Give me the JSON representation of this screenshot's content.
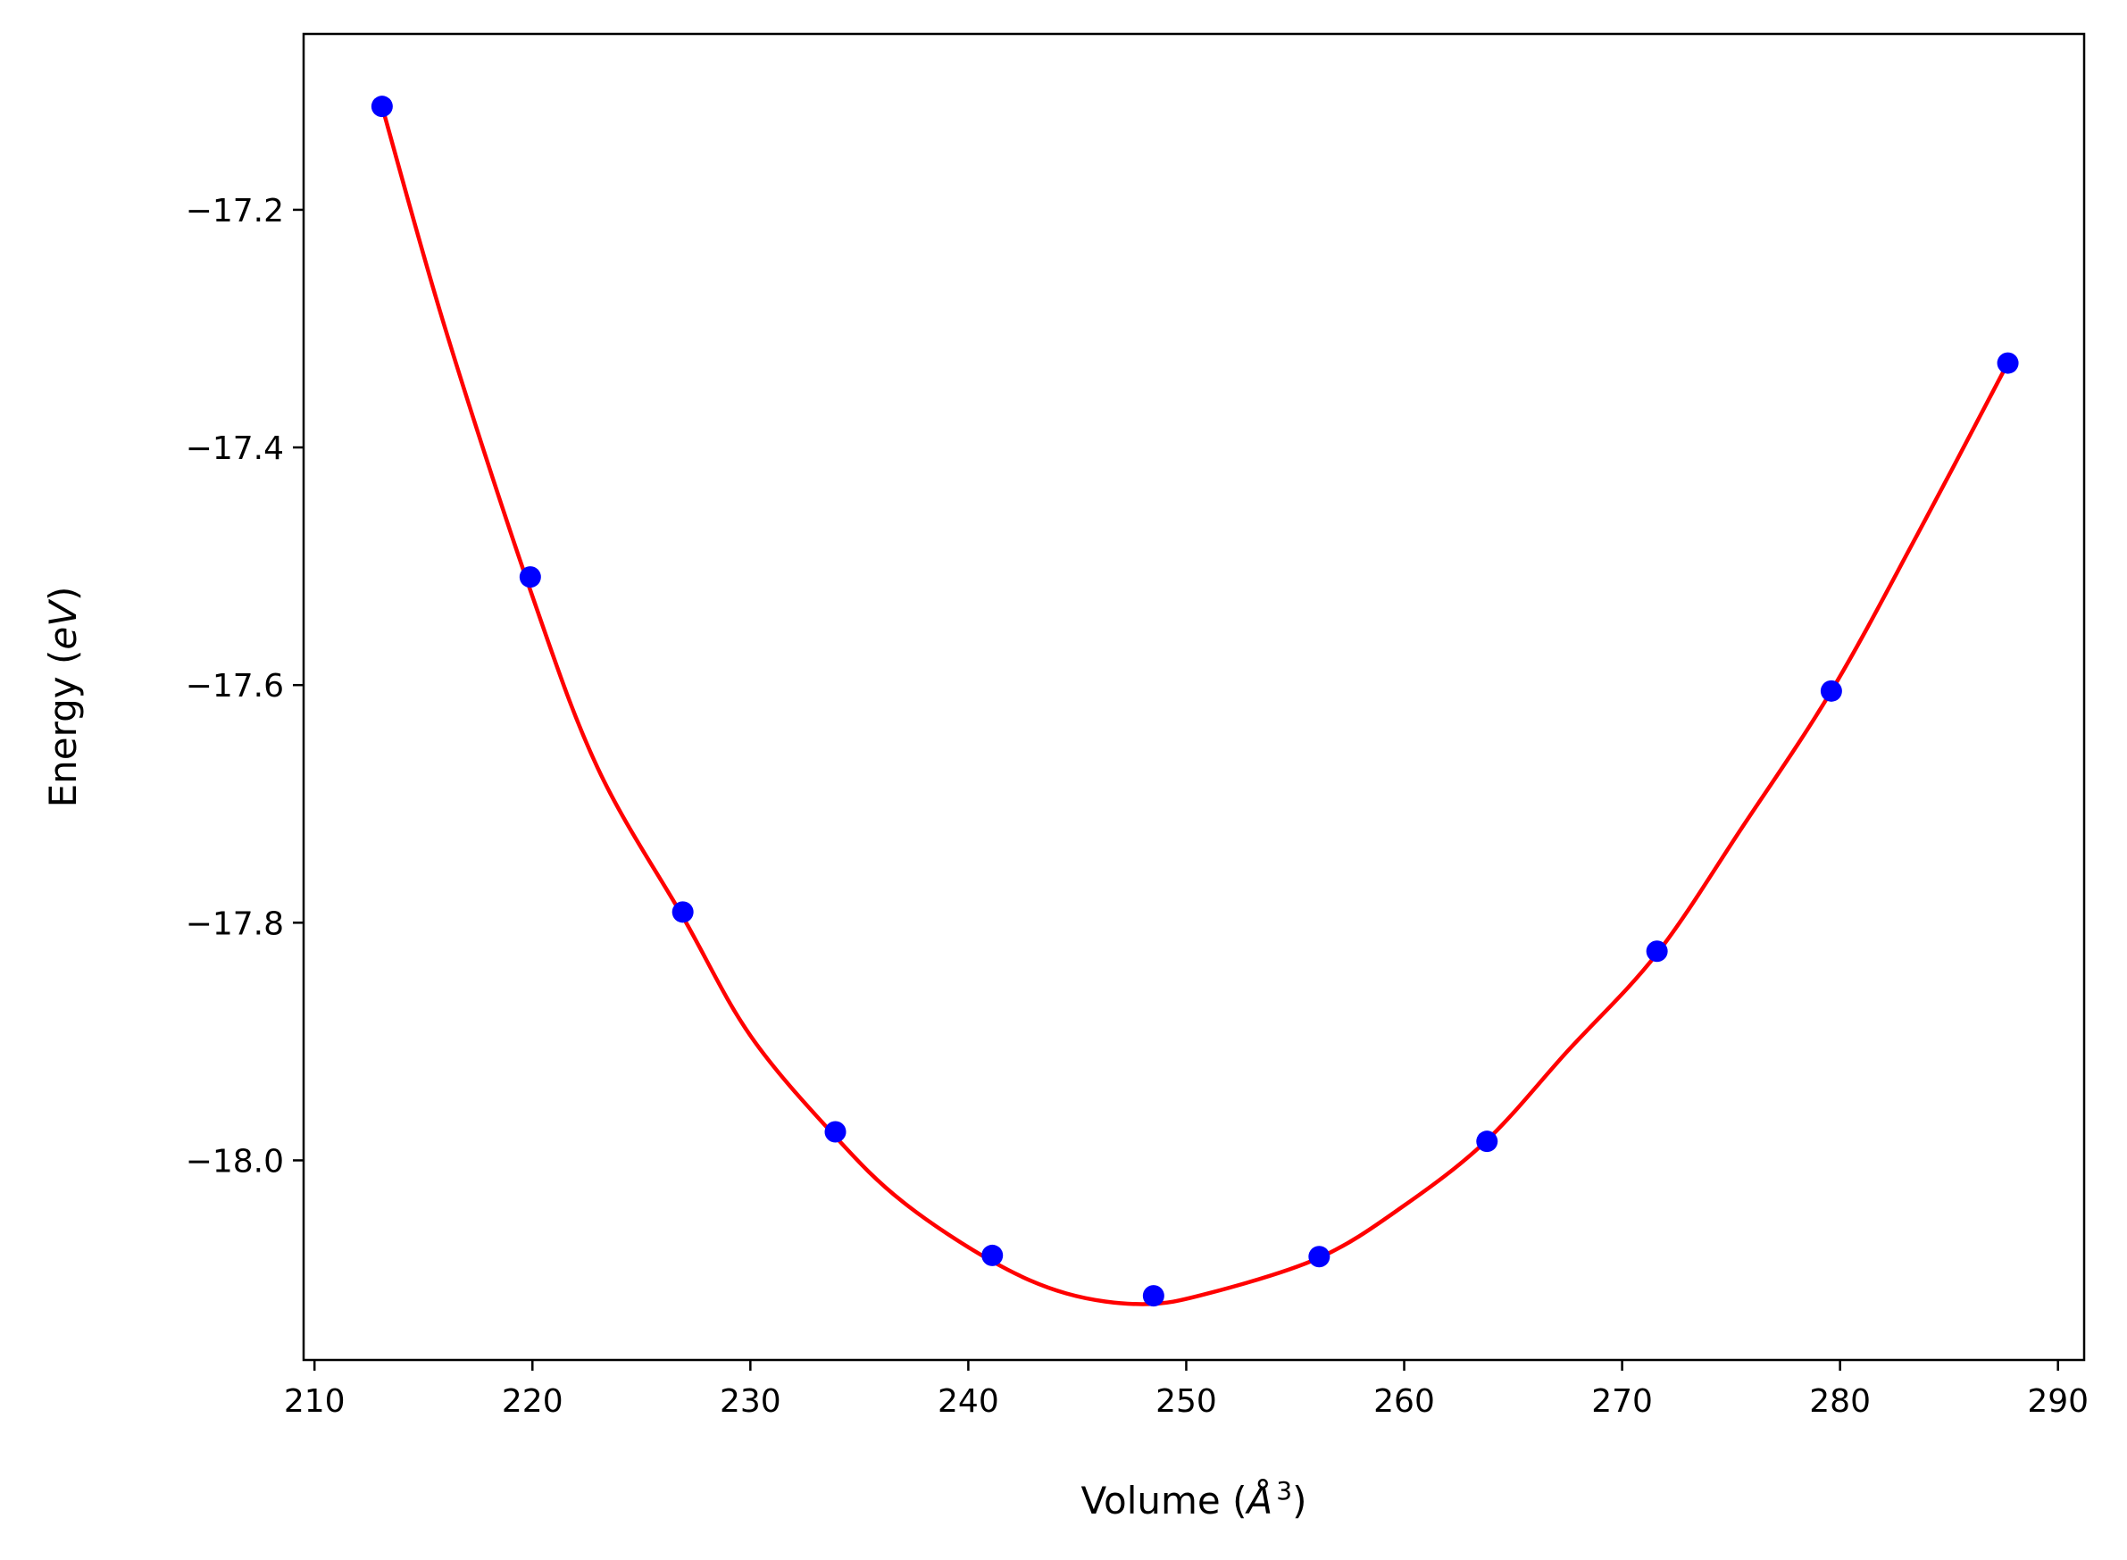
{
  "chart_data": {
    "type": "scatter",
    "title": "",
    "xlabel": {
      "prefix": "Volume (",
      "unit": "Å",
      "sup": "3",
      "suffix": ")"
    },
    "ylabel": {
      "prefix": "Energy (",
      "unit": "eV",
      "suffix": ")"
    },
    "xlim": [
      209.5,
      291.2
    ],
    "ylim": [
      -18.168,
      -17.052
    ],
    "xticks": [
      210,
      220,
      230,
      240,
      250,
      260,
      270,
      280,
      290
    ],
    "yticks": [
      -17.2,
      -17.4,
      -17.6,
      -17.8,
      -18.0
    ],
    "ytick_labels": [
      "−17.2",
      "−17.4",
      "−17.6",
      "−17.8",
      "−18.0"
    ],
    "grid": false,
    "series": [
      {
        "kind": "points",
        "color": "#0000ff",
        "x": [
          213.1,
          219.9,
          226.9,
          233.9,
          241.1,
          248.5,
          256.1,
          263.8,
          271.6,
          279.6,
          287.7
        ],
        "y": [
          -17.113,
          -17.509,
          -17.791,
          -17.976,
          -18.08,
          -18.114,
          -18.081,
          -17.984,
          -17.824,
          -17.605,
          -17.329
        ]
      },
      {
        "kind": "fit-curve",
        "color": "#ff0000",
        "x": [
          213.1,
          216.0,
          219.9,
          223.0,
          226.9,
          230.0,
          233.9,
          237.0,
          241.1,
          244.5,
          248.0,
          251.0,
          256.1,
          260.0,
          263.8,
          267.5,
          271.6,
          275.5,
          279.6,
          283.5,
          287.7
        ],
        "y": [
          -17.113,
          -17.3,
          -17.52,
          -17.67,
          -17.795,
          -17.895,
          -17.98,
          -18.035,
          -18.085,
          -18.112,
          -18.121,
          -18.112,
          -18.082,
          -18.038,
          -17.983,
          -17.908,
          -17.826,
          -17.72,
          -17.605,
          -17.475,
          -17.329
        ]
      }
    ]
  }
}
